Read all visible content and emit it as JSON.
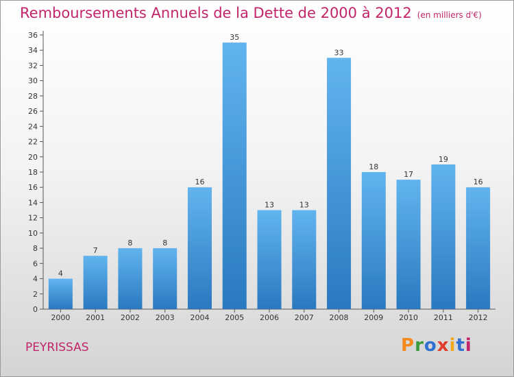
{
  "title": "Remboursements Annuels de la Dette de 2000 à 2012",
  "unit_note": "(en milliers d'€)",
  "commune": "PEYRISSAS",
  "brand": {
    "text": "Proxiti",
    "colors": [
      "#f28a1c",
      "#3b9a3b",
      "#2f6fd0",
      "#e23b2a",
      "#f2a71c",
      "#2f6fd0",
      "#c2246a"
    ]
  },
  "colors": {
    "bar_light": "#62b4ee",
    "bar_dark": "#2a79c0",
    "title": "#c2246a"
  },
  "chart_data": {
    "type": "bar",
    "title": "Remboursements Annuels de la Dette de 2000 à 2012",
    "xlabel": "",
    "ylabel": "",
    "categories": [
      "2000",
      "2001",
      "2002",
      "2003",
      "2004",
      "2005",
      "2006",
      "2007",
      "2008",
      "2009",
      "2010",
      "2011",
      "2012"
    ],
    "values": [
      4,
      7,
      8,
      8,
      16,
      35,
      13,
      13,
      33,
      18,
      17,
      19,
      16
    ],
    "ylim": [
      0,
      36
    ],
    "yticks": [
      0,
      2,
      4,
      6,
      8,
      10,
      12,
      14,
      16,
      18,
      20,
      22,
      24,
      26,
      28,
      30,
      32,
      34,
      36
    ],
    "grid": false,
    "data_labels": true
  }
}
